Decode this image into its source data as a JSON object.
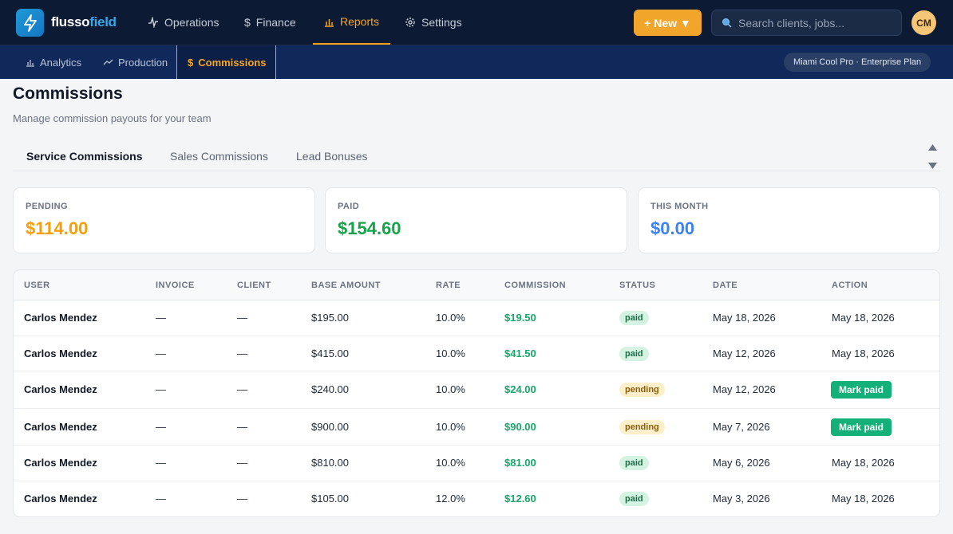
{
  "brand": {
    "name_part1": "flusso",
    "name_part2": "field",
    "logo_icon": "bolt-icon"
  },
  "topnav": {
    "items": [
      {
        "label": "Operations",
        "icon": "activity-icon"
      },
      {
        "label": "Finance",
        "icon": "dollar-icon"
      },
      {
        "label": "Reports",
        "icon": "bar-chart-icon",
        "active": true
      },
      {
        "label": "Settings",
        "icon": "gear-icon"
      }
    ],
    "new_button": "+ New ▼",
    "search_placeholder": "Search clients, jobs...",
    "avatar_initials": "CM"
  },
  "subnav": {
    "items": [
      {
        "label": "Analytics",
        "icon": "bar-chart-icon"
      },
      {
        "label": "Production",
        "icon": "trend-up-icon"
      },
      {
        "label": "Commissions",
        "icon": "dollar-icon",
        "active": true
      }
    ],
    "plan_badge": "Miami Cool Pro · Enterprise Plan"
  },
  "page": {
    "title": "Commissions",
    "subtitle": "Manage commission payouts for your team"
  },
  "tabs": [
    {
      "label": "Service Commissions",
      "active": true
    },
    {
      "label": "Sales Commissions"
    },
    {
      "label": "Lead Bonuses"
    }
  ],
  "stats": {
    "pending": {
      "label": "PENDING",
      "value": "$114.00",
      "color": "#f59e0b"
    },
    "paid": {
      "label": "PAID",
      "value": "$154.60",
      "color": "#16a34a"
    },
    "month": {
      "label": "THIS MONTH",
      "value": "$0.00",
      "color": "#3b82f6"
    }
  },
  "table": {
    "headers": [
      "USER",
      "INVOICE",
      "CLIENT",
      "BASE AMOUNT",
      "RATE",
      "COMMISSION",
      "STATUS",
      "DATE",
      "ACTION"
    ],
    "rows": [
      {
        "user": "Carlos Mendez",
        "invoice": "—",
        "client": "—",
        "base": "$195.00",
        "rate": "10.0%",
        "commission": "$19.50",
        "status": "paid",
        "date": "May 18, 2026",
        "action": "May 18, 2026"
      },
      {
        "user": "Carlos Mendez",
        "invoice": "—",
        "client": "—",
        "base": "$415.00",
        "rate": "10.0%",
        "commission": "$41.50",
        "status": "paid",
        "date": "May 12, 2026",
        "action": "May 18, 2026"
      },
      {
        "user": "Carlos Mendez",
        "invoice": "—",
        "client": "—",
        "base": "$240.00",
        "rate": "10.0%",
        "commission": "$24.00",
        "status": "pending",
        "date": "May 12, 2026",
        "action": "Mark paid"
      },
      {
        "user": "Carlos Mendez",
        "invoice": "—",
        "client": "—",
        "base": "$900.00",
        "rate": "10.0%",
        "commission": "$90.00",
        "status": "pending",
        "date": "May 7, 2026",
        "action": "Mark paid"
      },
      {
        "user": "Carlos Mendez",
        "invoice": "—",
        "client": "—",
        "base": "$810.00",
        "rate": "10.0%",
        "commission": "$81.00",
        "status": "paid",
        "date": "May 6, 2026",
        "action": "May 18, 2026"
      },
      {
        "user": "Carlos Mendez",
        "invoice": "—",
        "client": "—",
        "base": "$105.00",
        "rate": "12.0%",
        "commission": "$12.60",
        "status": "paid",
        "date": "May 3, 2026",
        "action": "May 18, 2026"
      }
    ]
  }
}
